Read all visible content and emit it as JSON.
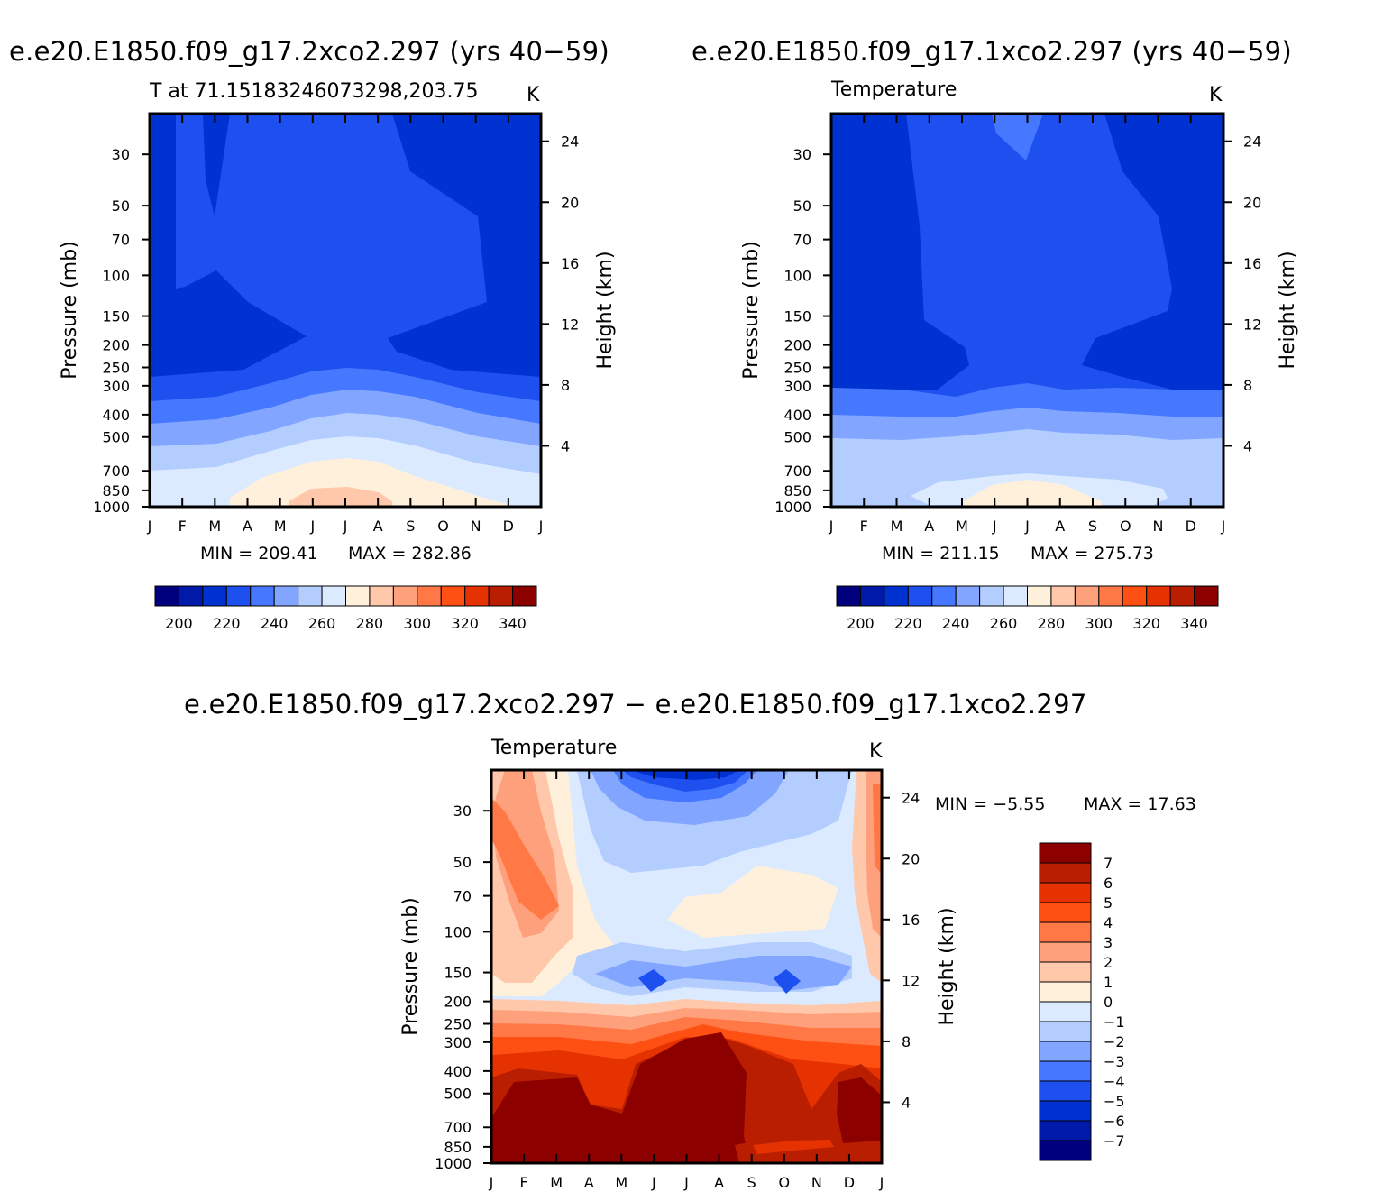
{
  "titles": {
    "top_left": "e.e20.E1850.f09_g17.2xco2.297 (yrs 40−59)",
    "top_right": "e.e20.E1850.f09_g17.1xco2.297 (yrs 40−59)",
    "bottom": "e.e20.E1850.f09_g17.2xco2.297 − e.e20.E1850.f09_g17.1xco2.297"
  },
  "chart_data": [
    {
      "type": "heatmap",
      "subtitle": "T at 71.15183246073298,203.75",
      "units": "K",
      "ylabel": "Pressure (mb)",
      "ylabel_right": "Height (km)",
      "months": [
        "J",
        "F",
        "M",
        "A",
        "M",
        "J",
        "J",
        "A",
        "S",
        "O",
        "N",
        "D",
        "J"
      ],
      "pressure_ticks": [
        "30",
        "50",
        "70",
        "100",
        "150",
        "200",
        "250",
        "300",
        "400",
        "500",
        "700",
        "850",
        "1000"
      ],
      "height_ticks": [
        "24",
        "20",
        "16",
        "12",
        "8",
        "4"
      ],
      "min_label": "MIN = 209.41",
      "max_label": "MAX = 282.86",
      "min": 209.41,
      "max": 282.86,
      "colorbar_labels": [
        "200",
        "220",
        "240",
        "260",
        "280",
        "300",
        "320",
        "340"
      ],
      "colorbar_colors": [
        "#00007f",
        "#0019a8",
        "#0032d2",
        "#1e50f0",
        "#4678ff",
        "#82a5ff",
        "#b4cdff",
        "#dceaff",
        "#fff0dc",
        "#ffc8aa",
        "#ffa07d",
        "#ff7846",
        "#ff5014",
        "#e63200",
        "#b91e00",
        "#8c0000"
      ]
    },
    {
      "type": "heatmap",
      "subtitle": "Temperature",
      "units": "K",
      "ylabel": "Pressure (mb)",
      "ylabel_right": "Height (km)",
      "months": [
        "J",
        "F",
        "M",
        "A",
        "M",
        "J",
        "J",
        "A",
        "S",
        "O",
        "N",
        "D",
        "J"
      ],
      "pressure_ticks": [
        "30",
        "50",
        "70",
        "100",
        "150",
        "200",
        "250",
        "300",
        "400",
        "500",
        "700",
        "850",
        "1000"
      ],
      "height_ticks": [
        "24",
        "20",
        "16",
        "12",
        "8",
        "4"
      ],
      "min_label": "MIN = 211.15",
      "max_label": "MAX = 275.73",
      "min": 211.15,
      "max": 275.73,
      "colorbar_labels": [
        "200",
        "220",
        "240",
        "260",
        "280",
        "300",
        "320",
        "340"
      ],
      "colorbar_colors": [
        "#00007f",
        "#0019a8",
        "#0032d2",
        "#1e50f0",
        "#4678ff",
        "#82a5ff",
        "#b4cdff",
        "#dceaff",
        "#fff0dc",
        "#ffc8aa",
        "#ffa07d",
        "#ff7846",
        "#ff5014",
        "#e63200",
        "#b91e00",
        "#8c0000"
      ]
    },
    {
      "type": "heatmap",
      "subtitle": "Temperature",
      "units": "K",
      "ylabel": "Pressure (mb)",
      "ylabel_right": "Height (km)",
      "months": [
        "J",
        "F",
        "M",
        "A",
        "M",
        "J",
        "J",
        "A",
        "S",
        "O",
        "N",
        "D",
        "J"
      ],
      "pressure_ticks": [
        "30",
        "50",
        "70",
        "100",
        "150",
        "200",
        "250",
        "300",
        "400",
        "500",
        "700",
        "850",
        "1000"
      ],
      "height_ticks": [
        "24",
        "20",
        "16",
        "12",
        "8",
        "4"
      ],
      "min_label": "MIN =   −5.55",
      "max_label": "MAX =   17.63",
      "min": -5.55,
      "max": 17.63,
      "colorbar_labels": [
        "7",
        "6",
        "5",
        "4",
        "3",
        "2",
        "1",
        "0",
        "−1",
        "−2",
        "−3",
        "−4",
        "−5",
        "−6",
        "−7"
      ],
      "colorbar_colors": [
        "#8c0000",
        "#b91e00",
        "#e63200",
        "#ff5014",
        "#ff7846",
        "#ffa07d",
        "#ffc8aa",
        "#fff0dc",
        "#dceaff",
        "#b4cdff",
        "#82a5ff",
        "#4678ff",
        "#1e50f0",
        "#0032d2",
        "#0019a8",
        "#00007f"
      ]
    }
  ]
}
